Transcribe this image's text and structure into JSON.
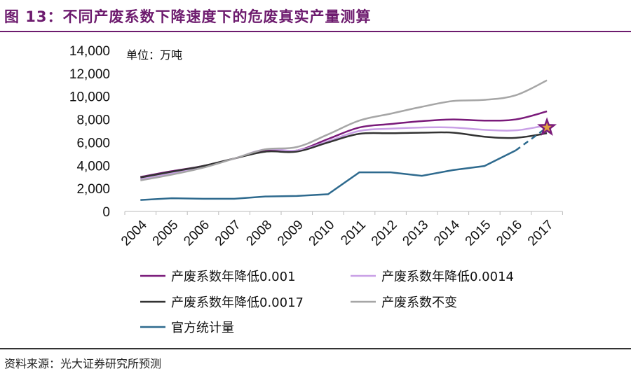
{
  "title": "图 13：不同产废系数下降速度下的危废真实产量测算",
  "source": "资料来源：光大证券研究所预测",
  "chart_data": {
    "type": "line",
    "unit_label": "单位：万吨",
    "categories": [
      "2004",
      "2005",
      "2006",
      "2007",
      "2008",
      "2009",
      "2010",
      "2011",
      "2012",
      "2013",
      "2014",
      "2015",
      "2016",
      "2017"
    ],
    "ylim": [
      0,
      14000
    ],
    "yticks": [
      "0",
      "2,000",
      "4,000",
      "6,000",
      "8,000",
      "10,000",
      "12,000",
      "14,000"
    ],
    "grid": false,
    "legend_placement": "bottom",
    "series": [
      {
        "name": "产废系数年降低0.001",
        "color": "#7a1a7a",
        "values": [
          3000,
          3500,
          3950,
          4600,
          5300,
          5300,
          6300,
          7300,
          7600,
          7850,
          8000,
          7900,
          8000,
          8700
        ]
      },
      {
        "name": "产废系数年降低0.0014",
        "color": "#c9a0e6",
        "values": [
          2800,
          3300,
          3900,
          4600,
          5400,
          5300,
          6100,
          7000,
          7200,
          7300,
          7300,
          7100,
          7050,
          7500
        ]
      },
      {
        "name": "产废系数年降低0.0017",
        "color": "#333333",
        "values": [
          2950,
          3450,
          3950,
          4600,
          5200,
          5200,
          6000,
          6750,
          6800,
          6850,
          6850,
          6500,
          6400,
          6800
        ]
      },
      {
        "name": "产废系数不变",
        "color": "#a6a6a6",
        "values": [
          2700,
          3200,
          3800,
          4600,
          5400,
          5600,
          6700,
          7900,
          8500,
          9100,
          9600,
          9700,
          10100,
          11400
        ]
      },
      {
        "name": "官方统计量",
        "color": "#2e6a8e",
        "values": [
          1000,
          1150,
          1100,
          1100,
          1300,
          1350,
          1500,
          3400,
          3400,
          3100,
          3600,
          3950,
          5300,
          7300
        ],
        "dashed_from": "2016"
      }
    ],
    "marker": {
      "shape": "star",
      "category": "2017",
      "value": 7300,
      "color": "#7a1a7a",
      "fill": "#e0a040"
    }
  }
}
